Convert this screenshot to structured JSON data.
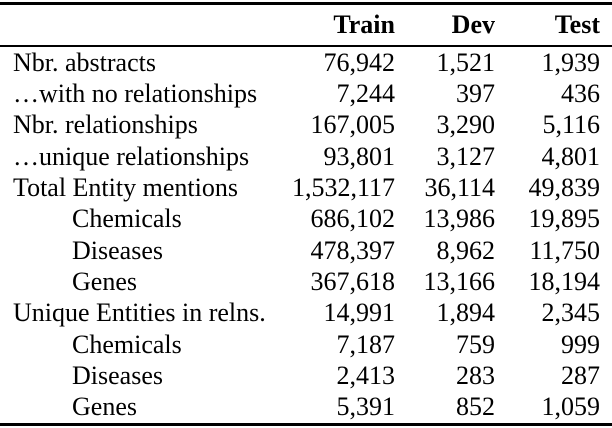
{
  "table": {
    "columns": [
      "Train",
      "Dev",
      "Test"
    ],
    "rows": [
      {
        "label": "Nbr. abstracts",
        "indent": 0,
        "values": [
          "76,942",
          "1,521",
          "1,939"
        ]
      },
      {
        "label": "…with no relationships",
        "indent": 0,
        "values": [
          "7,244",
          "397",
          "436"
        ]
      },
      {
        "label": "Nbr. relationships",
        "indent": 0,
        "values": [
          "167,005",
          "3,290",
          "5,116"
        ]
      },
      {
        "label": "…unique relationships",
        "indent": 0,
        "values": [
          "93,801",
          "3,127",
          "4,801"
        ]
      },
      {
        "label": "Total Entity mentions",
        "indent": 0,
        "values": [
          "1,532,117",
          "36,114",
          "49,839"
        ]
      },
      {
        "label": "Chemicals",
        "indent": 1,
        "values": [
          "686,102",
          "13,986",
          "19,895"
        ]
      },
      {
        "label": "Diseases",
        "indent": 1,
        "values": [
          "478,397",
          "8,962",
          "11,750"
        ]
      },
      {
        "label": "Genes",
        "indent": 1,
        "values": [
          "367,618",
          "13,166",
          "18,194"
        ]
      },
      {
        "label": "Unique Entities in relns.",
        "indent": 0,
        "values": [
          "14,991",
          "1,894",
          "2,345"
        ]
      },
      {
        "label": "Chemicals",
        "indent": 1,
        "values": [
          "7,187",
          "759",
          "999"
        ]
      },
      {
        "label": "Diseases",
        "indent": 1,
        "values": [
          "2,413",
          "283",
          "287"
        ]
      },
      {
        "label": "Genes",
        "indent": 1,
        "values": [
          "5,391",
          "852",
          "1,059"
        ]
      }
    ]
  },
  "colors": {
    "background": "#ffffff",
    "text": "#000000",
    "rule": "#000000"
  }
}
